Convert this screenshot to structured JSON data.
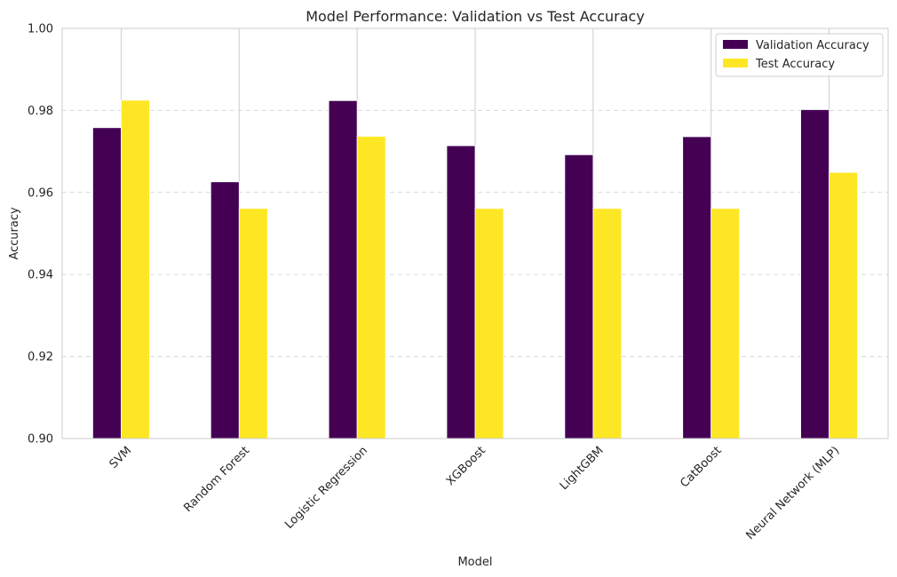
{
  "chart_data": {
    "type": "bar",
    "title": "Model Performance: Validation vs Test Accuracy",
    "xlabel": "Model",
    "ylabel": "Accuracy",
    "ylim": [
      0.9,
      1.0
    ],
    "yticks": [
      "0.90",
      "0.92",
      "0.94",
      "0.96",
      "0.98",
      "1.00"
    ],
    "categories": [
      "SVM",
      "Random Forest",
      "Logistic Regression",
      "XGBoost",
      "LightGBM",
      "CatBoost",
      "Neural Network (MLP)"
    ],
    "series": [
      {
        "name": "Validation Accuracy",
        "color": "#440154",
        "values": [
          0.9758,
          0.9626,
          0.9824,
          0.9714,
          0.9692,
          0.9736,
          0.9802
        ]
      },
      {
        "name": "Test Accuracy",
        "color": "#fde725",
        "values": [
          0.9825,
          0.9561,
          0.9737,
          0.9561,
          0.9561,
          0.9561,
          0.9649
        ]
      }
    ],
    "grid": {
      "y": true,
      "y_style": "dashed",
      "x": true
    },
    "legend": "top-right"
  }
}
